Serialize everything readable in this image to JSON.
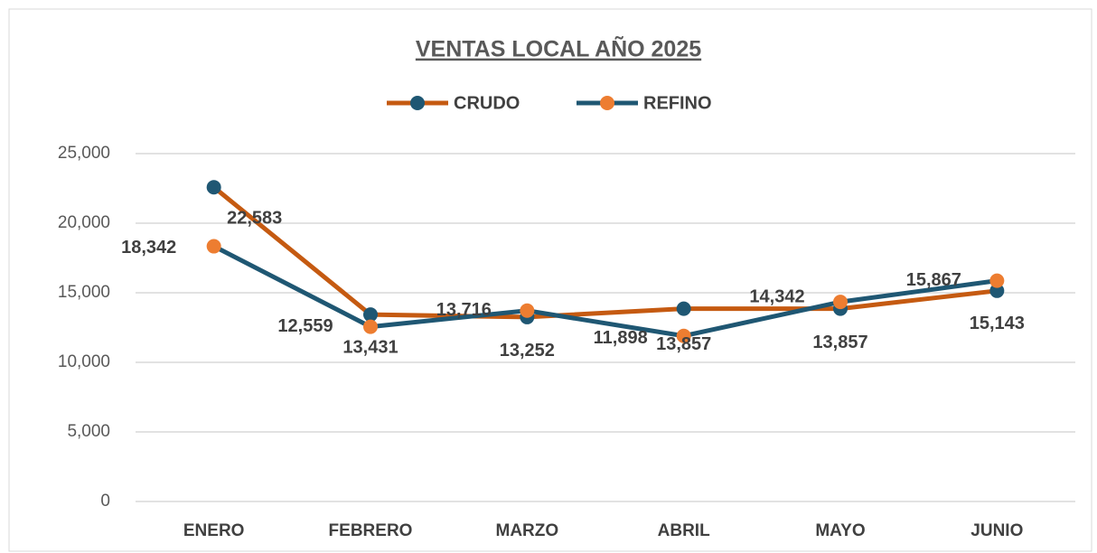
{
  "chart_data": {
    "type": "line",
    "title": "VENTAS LOCAL AÑO 2025",
    "categories": [
      "ENERO",
      "FEBRERO",
      "MARZO",
      "ABRIL",
      "MAYO",
      "JUNIO"
    ],
    "series": [
      {
        "name": "CRUDO",
        "color": "#c55a11",
        "marker_color": "#1f5773",
        "values": [
          22583,
          13431,
          13252,
          13857,
          13857,
          15143
        ]
      },
      {
        "name": "REFINO",
        "color": "#1f5773",
        "marker_color": "#ed7d31",
        "values": [
          18342,
          12559,
          13716,
          11898,
          14342,
          15867
        ]
      }
    ],
    "ylim": [
      0,
      25000
    ],
    "yticks": [
      {
        "value": 0,
        "label": "0"
      },
      {
        "value": 5000,
        "label": "5,000"
      },
      {
        "value": 10000,
        "label": "10,000"
      },
      {
        "value": 15000,
        "label": "15,000"
      },
      {
        "value": 20000,
        "label": "20,000"
      },
      {
        "value": 25000,
        "label": "25,000"
      }
    ],
    "grid": true,
    "legend": "top"
  }
}
